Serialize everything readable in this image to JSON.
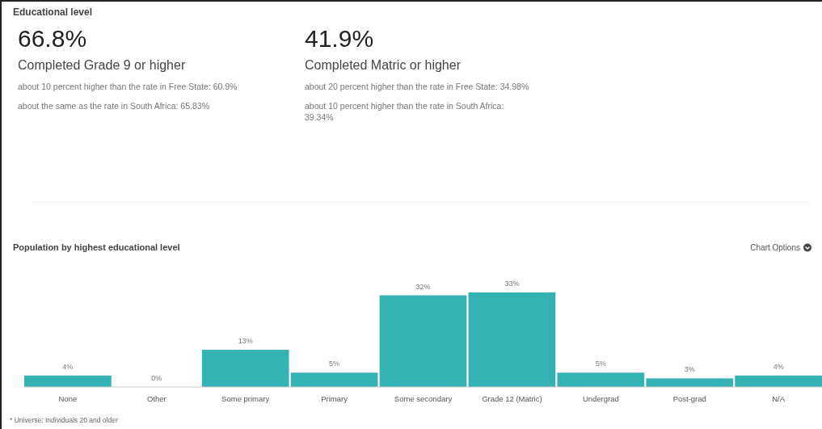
{
  "chart_data": [
    {
      "type": "other",
      "title": "Educational level",
      "annotations": [
        "66.8%",
        "Completed Grade 9 or higher",
        "about 10 percent higher than the rate in Free State: 60.9%",
        "about the same as the rate in South Africa: 65.83%",
        "41.9%",
        "Completed Matric or higher",
        "about 20 percent higher than the rate in Free State: 34.98%",
        "about 10 percent higher than the rate in South Africa: 39.34%"
      ]
    },
    {
      "type": "bar",
      "title": "Population by highest educational level",
      "categories": [
        "None",
        "Other",
        "Some primary",
        "Primary",
        "Some secondary",
        "Grade 12 (Matric)",
        "Undergrad",
        "Post-grad",
        "N/A"
      ],
      "values": [
        4,
        0,
        13,
        5,
        32,
        33,
        5,
        3,
        4
      ],
      "color": "#35b2b4",
      "value_labels": [
        "4%",
        "0%",
        "13%",
        "5%",
        "32%",
        "33%",
        "5%",
        "3%",
        "4%"
      ],
      "annotations": [
        "Chart Options",
        "* Universe: Individuals 20 and older"
      ]
    }
  ]
}
